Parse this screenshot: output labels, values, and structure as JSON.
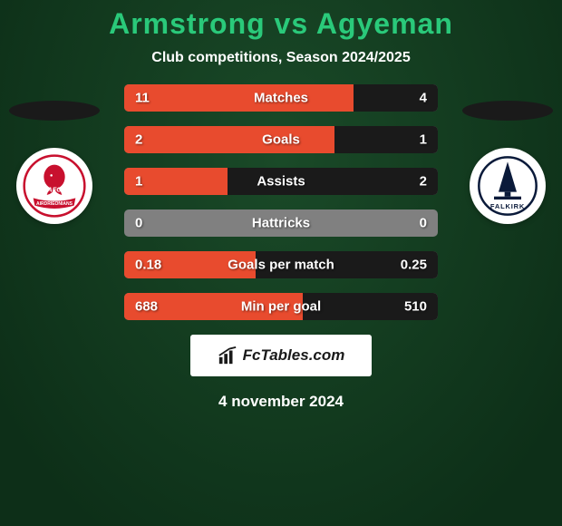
{
  "background_gradient": {
    "top": "#1a4a28",
    "bottom": "#0d2f18"
  },
  "title": {
    "left_name": "Armstrong",
    "vs": "vs",
    "right_name": "Agyeman",
    "color": "#2ac97a"
  },
  "subtitle": "Club competitions, Season 2024/2025",
  "shadow_ellipse_color": "#1a1a1a",
  "crest_left": {
    "ring_color": "#c8102e",
    "text": "AFC",
    "banner_text": "AIRDRIEONIANS"
  },
  "crest_right": {
    "text": "FALKIRK"
  },
  "bars": {
    "base_color": "#808080",
    "left_fill_color": "#e84b2e",
    "right_fill_color": "#1a1a1a",
    "rows": [
      {
        "label": "Matches",
        "left_val": "11",
        "right_val": "4",
        "left_pct": 73,
        "right_pct": 27
      },
      {
        "label": "Goals",
        "left_val": "2",
        "right_val": "1",
        "left_pct": 67,
        "right_pct": 33
      },
      {
        "label": "Assists",
        "left_val": "1",
        "right_val": "2",
        "left_pct": 33,
        "right_pct": 67
      },
      {
        "label": "Hattricks",
        "left_val": "0",
        "right_val": "0",
        "left_pct": 0,
        "right_pct": 0
      },
      {
        "label": "Goals per match",
        "left_val": "0.18",
        "right_val": "0.25",
        "left_pct": 42,
        "right_pct": 58
      },
      {
        "label": "Min per goal",
        "left_val": "688",
        "right_val": "510",
        "left_pct": 57,
        "right_pct": 43
      }
    ]
  },
  "attribution": {
    "text": "FcTables.com",
    "bg": "#ffffff",
    "color": "#1a1a1a"
  },
  "date": "4 november 2024"
}
